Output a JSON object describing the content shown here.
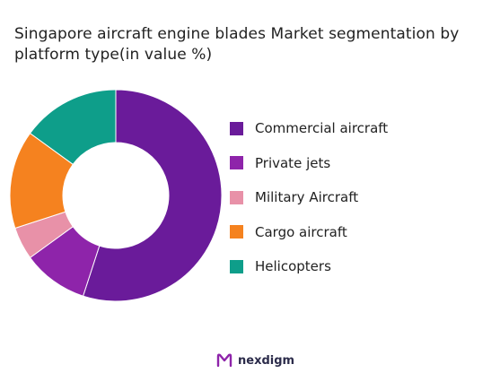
{
  "chart_data": {
    "type": "pie",
    "variant": "donut",
    "title": "Singapore aircraft engine blades Market segmentation by platform type(in value %)",
    "categories": [
      "Commercial aircraft",
      "Private jets",
      "Military Aircraft",
      "Cargo aircraft",
      "Helicopters"
    ],
    "values": [
      55,
      10,
      5,
      15,
      15
    ],
    "colors": [
      "#6a1b9a",
      "#8e24aa",
      "#e891a8",
      "#f5821f",
      "#0e9e8a"
    ],
    "legend_position": "right"
  },
  "logo": {
    "brand": "nexdigm",
    "icon": "nexdigm-logo-icon"
  }
}
